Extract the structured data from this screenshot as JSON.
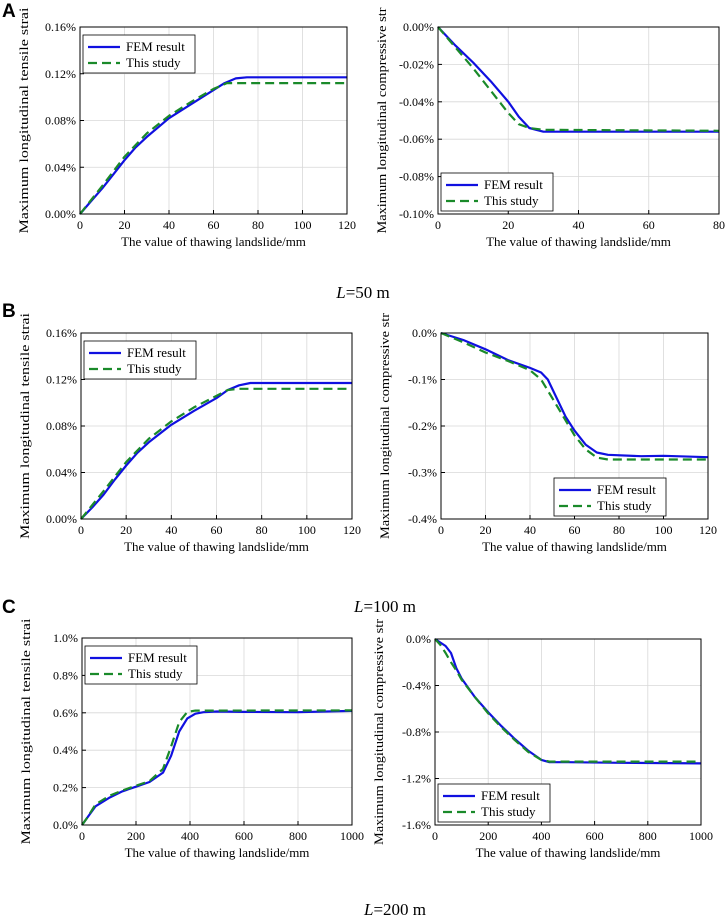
{
  "figure": {
    "panel_labels": [
      "A",
      "B",
      "C"
    ],
    "captions": [
      {
        "var": "L",
        "rest": "=50 m"
      },
      {
        "var": "L",
        "rest": "=100 m"
      },
      {
        "var": "L",
        "rest": "=200 m"
      }
    ]
  },
  "colors": {
    "fem": "#1010e0",
    "study": "#1a8a2a",
    "grid": "#d8d8d8"
  },
  "chart_data": [
    {
      "panel": "A",
      "side": "tensile",
      "type": "line",
      "xlabel": "The value of thawing landslide/mm",
      "ylabel": "Maximum  longitudinal tensile strai",
      "xlim": [
        0,
        120
      ],
      "ylim": [
        0,
        0.16
      ],
      "xticks": [
        0,
        20,
        40,
        60,
        80,
        100,
        120
      ],
      "xtick_labels": [
        "0",
        "20",
        "40",
        "60",
        "80",
        "100",
        "120"
      ],
      "yticks": [
        0,
        0.04,
        0.08,
        0.12,
        0.16
      ],
      "ytick_labels": [
        "0.00%",
        "0.04%",
        "0.08%",
        "0.12%",
        "0.16%"
      ],
      "legend_pos": "top-left",
      "series": [
        {
          "name": "FEM result",
          "style": "solid",
          "points": [
            [
              0,
              0
            ],
            [
              5,
              0.011
            ],
            [
              10,
              0.022
            ],
            [
              15,
              0.034
            ],
            [
              20,
              0.046
            ],
            [
              25,
              0.057
            ],
            [
              30,
              0.066
            ],
            [
              40,
              0.082
            ],
            [
              50,
              0.094
            ],
            [
              60,
              0.106
            ],
            [
              65,
              0.112
            ],
            [
              70,
              0.116
            ],
            [
              75,
              0.117
            ],
            [
              120,
              0.117
            ]
          ]
        },
        {
          "name": "This study",
          "style": "dashed",
          "points": [
            [
              0,
              0
            ],
            [
              10,
              0.024
            ],
            [
              20,
              0.049
            ],
            [
              30,
              0.069
            ],
            [
              40,
              0.084
            ],
            [
              50,
              0.096
            ],
            [
              60,
              0.107
            ],
            [
              66,
              0.112
            ],
            [
              70,
              0.112
            ],
            [
              120,
              0.112
            ]
          ]
        }
      ]
    },
    {
      "panel": "A",
      "side": "compressive",
      "type": "line",
      "xlabel": "The value of thawing landslide/mm",
      "ylabel": "Maximum  longitudinal compressive str",
      "xlim": [
        0,
        80
      ],
      "ylim": [
        -0.1,
        0
      ],
      "xticks": [
        0,
        20,
        40,
        60,
        80
      ],
      "xtick_labels": [
        "0",
        "20",
        "40",
        "60",
        "80"
      ],
      "yticks": [
        0,
        -0.02,
        -0.04,
        -0.06,
        -0.08,
        -0.1
      ],
      "ytick_labels": [
        "0.00%",
        "-0.02%",
        "-0.04%",
        "-0.06%",
        "-0.08%",
        "-0.10%"
      ],
      "legend_pos": "bottom-left",
      "series": [
        {
          "name": "FEM result",
          "style": "solid",
          "points": [
            [
              0,
              0
            ],
            [
              5,
              -0.01
            ],
            [
              10,
              -0.019
            ],
            [
              15,
              -0.029
            ],
            [
              20,
              -0.04
            ],
            [
              23,
              -0.048
            ],
            [
              26,
              -0.054
            ],
            [
              30,
              -0.056
            ],
            [
              80,
              -0.056
            ]
          ]
        },
        {
          "name": "This study",
          "style": "dashed",
          "points": [
            [
              0,
              0
            ],
            [
              5,
              -0.011
            ],
            [
              10,
              -0.022
            ],
            [
              15,
              -0.034
            ],
            [
              20,
              -0.046
            ],
            [
              23,
              -0.052
            ],
            [
              26,
              -0.054
            ],
            [
              30,
              -0.055
            ],
            [
              80,
              -0.0555
            ]
          ]
        }
      ]
    },
    {
      "panel": "B",
      "side": "tensile",
      "type": "line",
      "xlabel": "The value of thawing landslide/mm",
      "ylabel": "Maximum longitudinal tensile strai",
      "xlim": [
        0,
        120
      ],
      "ylim": [
        0,
        0.16
      ],
      "xticks": [
        0,
        20,
        40,
        60,
        80,
        100,
        120
      ],
      "xtick_labels": [
        "0",
        "20",
        "40",
        "60",
        "80",
        "100",
        "120"
      ],
      "yticks": [
        0,
        0.04,
        0.08,
        0.12,
        0.16
      ],
      "ytick_labels": [
        "0.00%",
        "0.04%",
        "0.08%",
        "0.12%",
        "0.16%"
      ],
      "legend_pos": "top-left",
      "series": [
        {
          "name": "FEM result",
          "style": "solid",
          "points": [
            [
              0,
              0
            ],
            [
              5,
              0.01
            ],
            [
              10,
              0.021
            ],
            [
              15,
              0.034
            ],
            [
              20,
              0.046
            ],
            [
              25,
              0.057
            ],
            [
              30,
              0.066
            ],
            [
              40,
              0.081
            ],
            [
              50,
              0.093
            ],
            [
              60,
              0.104
            ],
            [
              65,
              0.111
            ],
            [
              70,
              0.115
            ],
            [
              75,
              0.117
            ],
            [
              120,
              0.117
            ]
          ]
        },
        {
          "name": "This study",
          "style": "dashed",
          "points": [
            [
              0,
              0
            ],
            [
              10,
              0.024
            ],
            [
              20,
              0.049
            ],
            [
              30,
              0.069
            ],
            [
              40,
              0.084
            ],
            [
              50,
              0.096
            ],
            [
              60,
              0.106
            ],
            [
              65,
              0.111
            ],
            [
              70,
              0.112
            ],
            [
              120,
              0.112
            ]
          ]
        }
      ]
    },
    {
      "panel": "B",
      "side": "compressive",
      "type": "line",
      "xlabel": "The value of thawing landslide/mm",
      "ylabel": "Maximum longitudinal compressive str",
      "xlim": [
        0,
        120
      ],
      "ylim": [
        -0.4,
        0
      ],
      "xticks": [
        0,
        20,
        40,
        60,
        80,
        100,
        120
      ],
      "xtick_labels": [
        "0",
        "20",
        "40",
        "60",
        "80",
        "100",
        "120"
      ],
      "yticks": [
        0,
        -0.1,
        -0.2,
        -0.3,
        -0.4
      ],
      "ytick_labels": [
        "0.0%",
        "-0.1%",
        "-0.2%",
        "-0.3%",
        "-0.4%"
      ],
      "legend_pos": "bottom-right",
      "series": [
        {
          "name": "FEM result",
          "style": "solid",
          "points": [
            [
              0,
              0
            ],
            [
              10,
              -0.015
            ],
            [
              20,
              -0.035
            ],
            [
              30,
              -0.058
            ],
            [
              40,
              -0.075
            ],
            [
              45,
              -0.085
            ],
            [
              48,
              -0.1
            ],
            [
              52,
              -0.14
            ],
            [
              56,
              -0.18
            ],
            [
              60,
              -0.21
            ],
            [
              65,
              -0.24
            ],
            [
              70,
              -0.257
            ],
            [
              75,
              -0.262
            ],
            [
              90,
              -0.265
            ],
            [
              100,
              -0.264
            ],
            [
              120,
              -0.267
            ]
          ]
        },
        {
          "name": "This study",
          "style": "dashed",
          "points": [
            [
              0,
              0
            ],
            [
              10,
              -0.02
            ],
            [
              20,
              -0.042
            ],
            [
              30,
              -0.06
            ],
            [
              40,
              -0.08
            ],
            [
              45,
              -0.1
            ],
            [
              50,
              -0.14
            ],
            [
              55,
              -0.18
            ],
            [
              60,
              -0.22
            ],
            [
              65,
              -0.25
            ],
            [
              70,
              -0.268
            ],
            [
              75,
              -0.272
            ],
            [
              120,
              -0.272
            ]
          ]
        }
      ]
    },
    {
      "panel": "C",
      "side": "tensile",
      "type": "line",
      "xlabel": "The value of thawing landslide/mm",
      "ylabel": "Maximum longitudinal tensile strai",
      "xlim": [
        0,
        1000
      ],
      "ylim": [
        0,
        1.0
      ],
      "xticks": [
        0,
        200,
        400,
        600,
        800,
        1000
      ],
      "xtick_labels": [
        "0",
        "200",
        "400",
        "600",
        "800",
        "1000"
      ],
      "yticks": [
        0,
        0.2,
        0.4,
        0.6,
        0.8,
        1.0
      ],
      "ytick_labels": [
        "0.0%",
        "0.2%",
        "0.4%",
        "0.6%",
        "0.8%",
        "1.0%"
      ],
      "legend_pos": "top-left",
      "series": [
        {
          "name": "FEM result",
          "style": "solid",
          "points": [
            [
              0,
              0
            ],
            [
              20,
              0.04
            ],
            [
              50,
              0.1
            ],
            [
              100,
              0.145
            ],
            [
              150,
              0.18
            ],
            [
              200,
              0.205
            ],
            [
              250,
              0.23
            ],
            [
              300,
              0.28
            ],
            [
              330,
              0.37
            ],
            [
              360,
              0.5
            ],
            [
              390,
              0.57
            ],
            [
              420,
              0.595
            ],
            [
              450,
              0.603
            ],
            [
              500,
              0.607
            ],
            [
              600,
              0.605
            ],
            [
              800,
              0.603
            ],
            [
              1000,
              0.61
            ]
          ]
        },
        {
          "name": "This study",
          "style": "dashed",
          "points": [
            [
              0,
              0
            ],
            [
              20,
              0.04
            ],
            [
              50,
              0.11
            ],
            [
              100,
              0.155
            ],
            [
              150,
              0.185
            ],
            [
              200,
              0.21
            ],
            [
              250,
              0.235
            ],
            [
              300,
              0.3
            ],
            [
              330,
              0.42
            ],
            [
              360,
              0.55
            ],
            [
              390,
              0.605
            ],
            [
              420,
              0.612
            ],
            [
              500,
              0.612
            ],
            [
              1000,
              0.613
            ]
          ]
        }
      ]
    },
    {
      "panel": "C",
      "side": "compressive",
      "type": "line",
      "xlabel": "The value of thawing landslide/mm",
      "ylabel": "Maximum longitudinal compressive str",
      "xlim": [
        0,
        1000
      ],
      "ylim": [
        -1.6,
        0
      ],
      "xticks": [
        0,
        200,
        400,
        600,
        800,
        1000
      ],
      "xtick_labels": [
        "0",
        "200",
        "400",
        "600",
        "800",
        "1000"
      ],
      "yticks": [
        0,
        -0.4,
        -0.8,
        -1.2,
        -1.6
      ],
      "ytick_labels": [
        "0.0%",
        "-0.4%",
        "-0.8%",
        "-1.2%",
        "-1.6%"
      ],
      "legend_pos": "bottom-left",
      "series": [
        {
          "name": "FEM result",
          "style": "solid",
          "points": [
            [
              0,
              0
            ],
            [
              20,
              -0.03
            ],
            [
              40,
              -0.06
            ],
            [
              60,
              -0.12
            ],
            [
              80,
              -0.25
            ],
            [
              100,
              -0.34
            ],
            [
              150,
              -0.5
            ],
            [
              200,
              -0.63
            ],
            [
              250,
              -0.75
            ],
            [
              300,
              -0.86
            ],
            [
              350,
              -0.96
            ],
            [
              400,
              -1.04
            ],
            [
              430,
              -1.06
            ],
            [
              500,
              -1.06
            ],
            [
              700,
              -1.065
            ],
            [
              1000,
              -1.07
            ]
          ]
        },
        {
          "name": "This study",
          "style": "dashed",
          "points": [
            [
              0,
              0
            ],
            [
              20,
              -0.05
            ],
            [
              40,
              -0.12
            ],
            [
              60,
              -0.2
            ],
            [
              80,
              -0.27
            ],
            [
              100,
              -0.35
            ],
            [
              150,
              -0.5
            ],
            [
              200,
              -0.64
            ],
            [
              250,
              -0.76
            ],
            [
              300,
              -0.87
            ],
            [
              350,
              -0.97
            ],
            [
              400,
              -1.04
            ],
            [
              430,
              -1.055
            ],
            [
              500,
              -1.055
            ],
            [
              1000,
              -1.055
            ]
          ]
        }
      ]
    }
  ]
}
